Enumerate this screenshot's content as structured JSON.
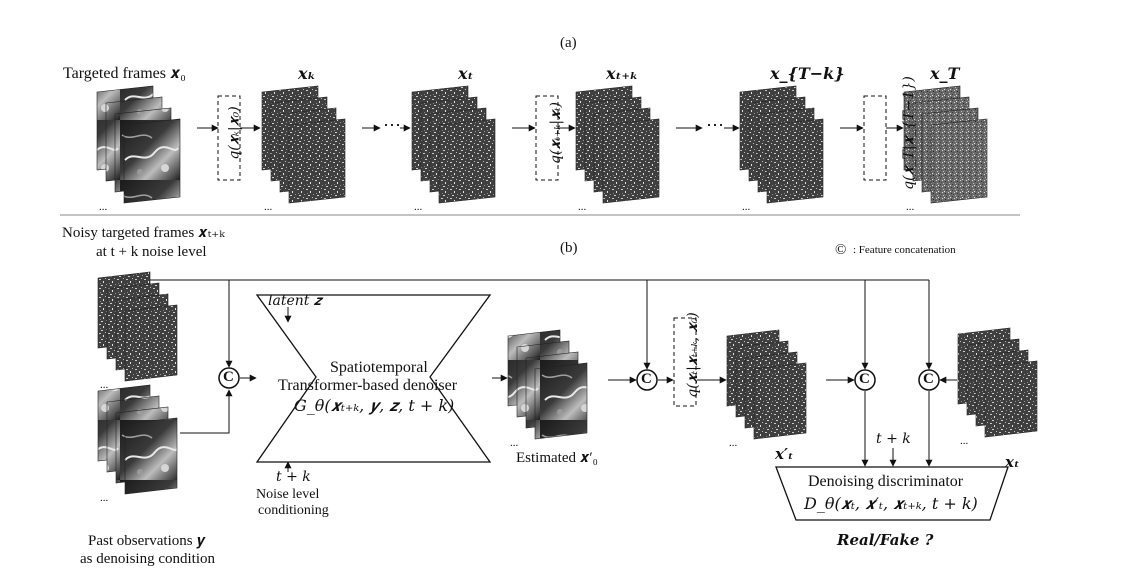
{
  "panel_a": {
    "label": "(a)",
    "targeted_frames": "Targeted frames 𝒙₀",
    "stage_labels": [
      "𝒙ₖ",
      "𝒙ₜ",
      "𝒙ₜ₊ₖ",
      "𝒙_{T−k}",
      "𝒙_T"
    ],
    "transitions": [
      "q(𝒙ₖ|𝒙₀)",
      "q(𝒙ₜ₊ₖ|𝒙ₜ)",
      "q(𝒙_T|𝒙_{T−1})"
    ],
    "ellipsis": "⋯",
    "stack_dots": "..."
  },
  "panel_b": {
    "label": "(b)",
    "noisy_title_1": "Noisy targeted frames 𝒙ₜ₊ₖ",
    "noisy_title_2": "at t + k noise level",
    "legend_symbol": "©",
    "legend_text": ": Feature concatenation",
    "latent": "latent 𝒛",
    "denoiser_1": "Spatiotemporal",
    "denoiser_2": "Transformer-based denoiser",
    "denoiser_formula": "G_θ(𝒙ₜ₊ₖ, 𝒚, 𝒛, t + k)",
    "noise_t": "t + k",
    "noise_label_1": "Noise level",
    "noise_label_2": "conditioning",
    "estimated": "Estimated 𝒙′₀",
    "posterior": "q(𝒙ₜ|𝒙ₜ₊ₖ, 𝒙₀)",
    "xt_prime": "𝒙′ₜ",
    "xt": "𝒙ₜ",
    "disc_t": "t + k",
    "disc_title": "Denoising discriminator",
    "disc_formula": "D_θ(𝒙ₜ, 𝒙′ₜ, 𝒙ₜ₊ₖ, t + k)",
    "real_fake": "Real/Fake ?",
    "past_1": "Past observations 𝒚",
    "past_2": "as denoising condition",
    "concat_symbol": "C"
  },
  "colors": {
    "ink": "#111111",
    "rule": "#888888"
  }
}
